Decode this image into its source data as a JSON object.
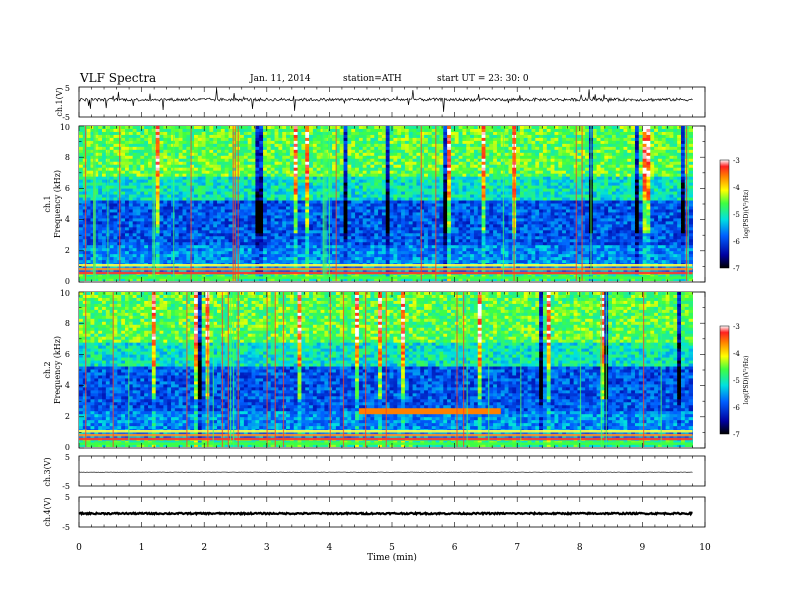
{
  "header": {
    "title": "VLF  Spectra",
    "date": "Jan.  11, 2014",
    "station": "station=ATH",
    "start": "start  UT  =    23: 30: 0"
  },
  "chart_data": [
    {
      "type": "line",
      "name": "ch1-waveform",
      "ylabel": "ch.1(V)",
      "ylim": [
        -5,
        5
      ],
      "y_ticks": [
        "5",
        "-5"
      ],
      "baseline": 0.8,
      "noise_amplitude": 0.5,
      "spikes": true
    },
    {
      "type": "heatmap",
      "name": "ch1-spectrogram",
      "ylabel_line1": "ch.1",
      "ylabel_line2": "Frequency  (kHz)",
      "ylim": [
        0,
        10
      ],
      "y_ticks": [
        "0",
        "2",
        "4",
        "6",
        "8",
        "10"
      ],
      "colorbar": {
        "label": "log(PSD)(V²/Hz)",
        "range": [
          -7,
          -3
        ],
        "ticks": [
          "-3",
          "-4",
          "-5",
          "-6",
          "-7"
        ]
      }
    },
    {
      "type": "heatmap",
      "name": "ch2-spectrogram",
      "ylabel_line1": "ch.2",
      "ylabel_line2": "Frequency  (kHz)",
      "ylim": [
        0,
        10
      ],
      "y_ticks": [
        "0",
        "2",
        "4",
        "6",
        "8",
        "10"
      ],
      "colorbar": {
        "label": "log(PSD)(V²/Hz)",
        "range": [
          -7,
          -3
        ],
        "ticks": [
          "-3",
          "-4",
          "-5",
          "-6",
          "-7"
        ]
      }
    },
    {
      "type": "line",
      "name": "ch3-waveform",
      "ylabel": "ch.3(V)",
      "ylim": [
        -5,
        5
      ],
      "y_ticks": [
        "5",
        "-5"
      ],
      "baseline": -0.4,
      "noise_amplitude": 0.05
    },
    {
      "type": "line",
      "name": "ch4-waveform",
      "ylabel": "ch.4(V)",
      "ylim": [
        -5,
        5
      ],
      "y_ticks": [
        "5",
        "-5"
      ],
      "baseline": -0.5,
      "noise_amplitude": 0.25
    }
  ],
  "x_axis": {
    "label": "Time  (min)",
    "range": [
      0,
      10
    ],
    "ticks": [
      "0",
      "1",
      "2",
      "3",
      "4",
      "5",
      "6",
      "7",
      "8",
      "9",
      "10"
    ],
    "data_end_min": 9.8
  }
}
